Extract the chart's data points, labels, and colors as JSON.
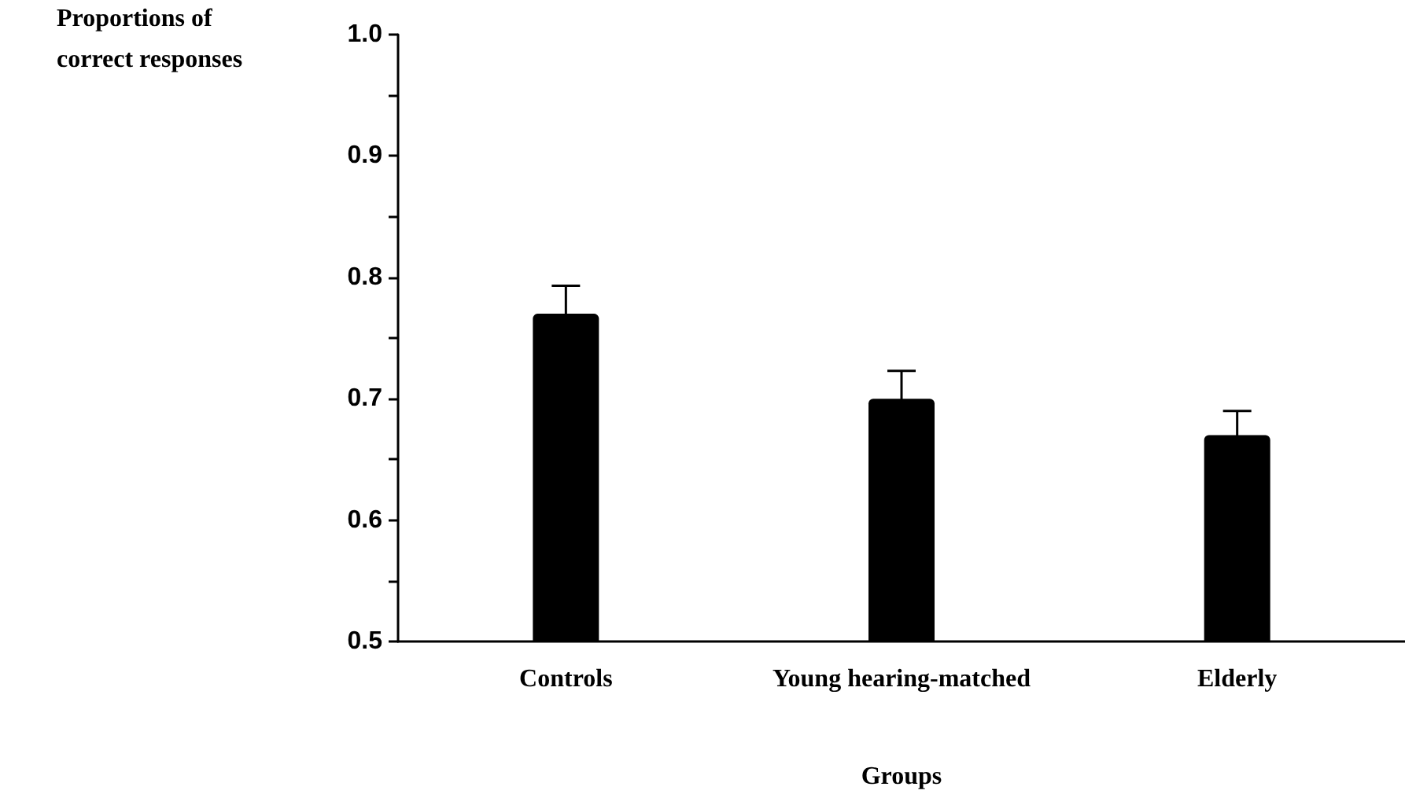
{
  "chart_data": {
    "type": "bar",
    "ylabel": "Proportions of\ncorrect responses",
    "xlabel": "Groups",
    "categories": [
      "Controls",
      "Young hearing-matched",
      "Elderly"
    ],
    "values": [
      0.77,
      0.7,
      0.67
    ],
    "color": "#000000",
    "errors": [
      0.023,
      0.023,
      0.02
    ],
    "ylim": [
      0.5,
      1.0
    ],
    "yticks": [
      0.5,
      {
        "value": 0.55,
        "label": null
      },
      0.6,
      {
        "value": 0.65,
        "label": null
      },
      0.7,
      {
        "value": 0.75,
        "label": null
      },
      0.8,
      {
        "value": 0.85,
        "label": null
      },
      0.9,
      {
        "value": 0.95,
        "label": null
      },
      {
        "value": 1.0,
        "label": "1.0"
      }
    ],
    "grid": false
  }
}
